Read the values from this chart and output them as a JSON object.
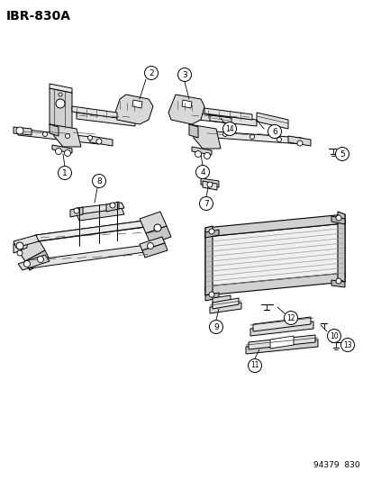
{
  "title": "IBR–830A",
  "background_color": "#ffffff",
  "text_color": "#000000",
  "line_color": "#000000",
  "footer_text": "94379  830",
  "fig_width": 4.14,
  "fig_height": 5.33,
  "dpi": 100,
  "line_gray": "#555555",
  "dark_gray": "#333333",
  "mid_gray": "#888888"
}
